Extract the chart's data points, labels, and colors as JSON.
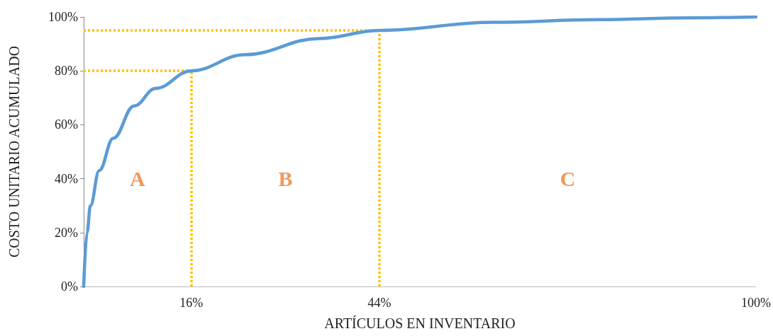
{
  "chart_data": {
    "type": "line",
    "xlabel": "ARTÍCULOS EN INVENTARIO",
    "ylabel": "COSTO UNITARIO ACUMULADO",
    "x": [
      0,
      0.5,
      1,
      2.3,
      4.4,
      7.5,
      10.7,
      16,
      24,
      35,
      44,
      61,
      76.5,
      90,
      100
    ],
    "series": [
      {
        "color": "#5b9bd5",
        "values": [
          0,
          20,
          30,
          43,
          55,
          67,
          73.5,
          80,
          86,
          92,
          95,
          98,
          99,
          99.7,
          100
        ]
      }
    ],
    "xlim": [
      0,
      100
    ],
    "ylim": [
      0,
      100
    ],
    "xticks": [
      {
        "value": 16,
        "label": "16%"
      },
      {
        "value": 44,
        "label": "44%"
      },
      {
        "value": 100,
        "label": "100%"
      }
    ],
    "yticks": [
      {
        "value": 0,
        "label": "0%"
      },
      {
        "value": 20,
        "label": "20%"
      },
      {
        "value": 40,
        "label": "40%"
      },
      {
        "value": 60,
        "label": "60%"
      },
      {
        "value": 80,
        "label": "80%"
      },
      {
        "value": 100,
        "label": "100%"
      }
    ],
    "marker": "none",
    "line_style": "solid",
    "grid": false,
    "ref_lines": [
      {
        "axis": "y",
        "value": 80,
        "color": "#ffc000",
        "line_style": "dotted"
      },
      {
        "axis": "y",
        "value": 95,
        "color": "#ffc000",
        "line_style": "dotted"
      },
      {
        "axis": "x",
        "value": 16,
        "color": "#ffc000",
        "line_style": "dotted"
      },
      {
        "axis": "x",
        "value": 44,
        "color": "#ffc000",
        "line_style": "dotted"
      }
    ],
    "annotations": [
      "A",
      "B",
      "C"
    ]
  }
}
